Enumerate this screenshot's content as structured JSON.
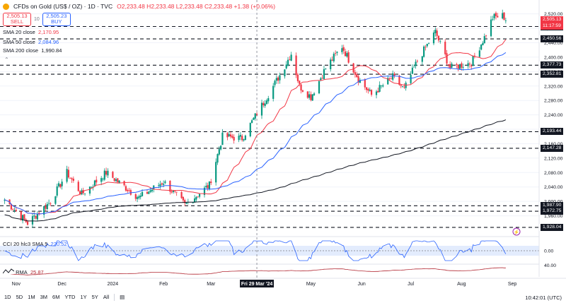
{
  "header": {
    "title": "CFDs on Gold (US$ / OZ) · 1D · TVC",
    "ohlc": "O2,233.48  H2,233.48  L2,233.48  C2,233.48  +1.38 (+0.06%)"
  },
  "trade": {
    "sell_price": "2,505.13",
    "sell_label": "SELL",
    "spread": "10",
    "buy_price": "2,505.23",
    "buy_label": "BUY"
  },
  "indicators": [
    {
      "name": "SMA 20 close",
      "value": "2,170.95",
      "color": "#f23645"
    },
    {
      "name": "SMA 50 close",
      "value": "2,084.96",
      "color": "#2962ff"
    },
    {
      "name": "SMA 200 close",
      "value": "1,990.84",
      "color": "#131722"
    }
  ],
  "cci_label": "CCI 20 hlc3 SMA 5",
  "cci_value": "220.52",
  "rsi_label": "RMA",
  "rsi_value": "25.87",
  "colors": {
    "up": "#089981",
    "down": "#f23645",
    "bg": "#ffffff",
    "grid": "#f0f3fa",
    "sma20": "#f23645",
    "sma50": "#2962ff",
    "sma200": "#131722",
    "cci": "#2962ff",
    "rsi": "#b22833"
  },
  "price_tags": {
    "current": "2,505.13",
    "countdown": "11:17:59"
  },
  "timeframes": [
    "1D",
    "5D",
    "1M",
    "3M",
    "6M",
    "YTD",
    "1Y",
    "5Y",
    "All"
  ],
  "clock": "10:42:01 (UTC)",
  "chart_data": {
    "type": "candlestick",
    "title": "CFDs on Gold (US$ / OZ) · 1D · TVC",
    "y_ticks": [
      1960,
      2000,
      2040,
      2080,
      2120,
      2160,
      2200,
      2240,
      2280,
      2320,
      2360,
      2400,
      2440,
      2480,
      2520
    ],
    "y_tick_labels": [
      "1,960.00",
      "2,000.00",
      "2,040.00",
      "2,080.00",
      "2,120.00",
      "2,160.00",
      "2,200.00",
      "2,240.00",
      "2,280.00",
      "2,320.00",
      "2,360.00",
      "2,400.00",
      "2,440.00",
      "2,480.00",
      "2,520.00"
    ],
    "ylim": [
      1920,
      2535
    ],
    "x_labels": [
      "Nov",
      "Dec",
      "2024",
      "Feb",
      "Mar",
      "Fri 29 Mar '24",
      "May",
      "Jun",
      "Jul",
      "Aug",
      "Sep"
    ],
    "horizontal_levels": [
      2485.04,
      2450.56,
      2377.73,
      2352.81,
      2193.44,
      2147.28,
      1987.9,
      1972.75,
      1928.04
    ],
    "horizontal_level_labels": [
      "2,485.04",
      "2,450.56",
      "2,377.73",
      "2,352.81",
      "2,193.44",
      "2,147.28",
      "1,987.90",
      "1,972.75",
      "1,928.04"
    ],
    "close_anchors": [
      [
        "2023-10-27",
        2005
      ],
      [
        "2023-11-10",
        1940
      ],
      [
        "2023-11-24",
        2000
      ],
      [
        "2023-12-04",
        2080
      ],
      [
        "2023-12-13",
        2020
      ],
      [
        "2023-12-28",
        2080
      ],
      [
        "2024-01-17",
        2010
      ],
      [
        "2024-02-01",
        2055
      ],
      [
        "2024-02-14",
        1990
      ],
      [
        "2024-02-29",
        2045
      ],
      [
        "2024-03-08",
        2180
      ],
      [
        "2024-03-20",
        2175
      ],
      [
        "2024-04-12",
        2350
      ],
      [
        "2024-04-19",
        2410
      ],
      [
        "2024-04-24",
        2320
      ],
      [
        "2024-05-01",
        2290
      ],
      [
        "2024-05-10",
        2370
      ],
      [
        "2024-05-20",
        2430
      ],
      [
        "2024-05-30",
        2340
      ],
      [
        "2024-06-07",
        2295
      ],
      [
        "2024-06-20",
        2345
      ],
      [
        "2024-06-27",
        2310
      ],
      [
        "2024-07-05",
        2390
      ],
      [
        "2024-07-16",
        2470
      ],
      [
        "2024-07-25",
        2370
      ],
      [
        "2024-08-07",
        2385
      ],
      [
        "2024-08-15",
        2455
      ],
      [
        "2024-08-20",
        2510
      ],
      [
        "2024-08-26",
        2515
      ],
      [
        "2024-08-28",
        2505
      ]
    ],
    "cci_scale_labels": [
      "0.00"
    ],
    "rsi_scale_labels": [
      "40.00"
    ]
  }
}
